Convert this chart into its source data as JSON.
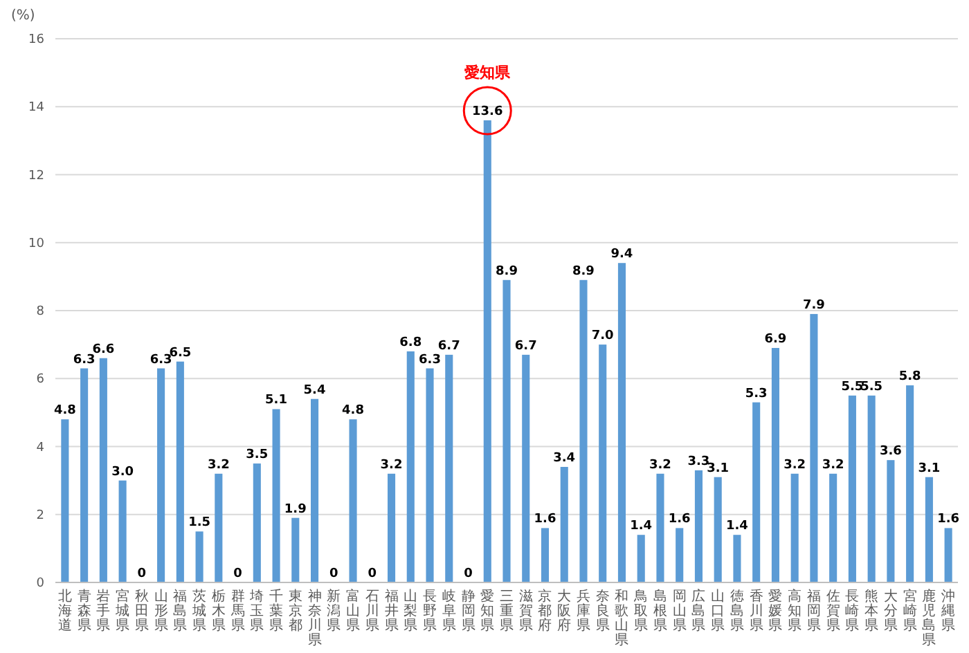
{
  "chart_data": {
    "type": "bar",
    "ylabel": "(%)",
    "categories": [
      "北海道",
      "青森県",
      "岩手県",
      "宮城県",
      "秋田県",
      "山形県",
      "福島県",
      "茨城県",
      "栃木県",
      "群馬県",
      "埼玉県",
      "千葉県",
      "東京都",
      "神奈川県",
      "新潟県",
      "富山県",
      "石川県",
      "福井県",
      "山梨県",
      "長野県",
      "岐阜県",
      "静岡県",
      "愛知県",
      "三重県",
      "滋賀県",
      "京都府",
      "大阪府",
      "兵庫県",
      "奈良県",
      "和歌山県",
      "鳥取県",
      "島根県",
      "岡山県",
      "広島県",
      "山口県",
      "徳島県",
      "香川県",
      "愛媛県",
      "高知県",
      "福岡県",
      "佐賀県",
      "長崎県",
      "熊本県",
      "大分県",
      "宮崎県",
      "鹿児島県",
      "沖縄県"
    ],
    "values": [
      4.8,
      6.3,
      6.6,
      3.0,
      0,
      6.3,
      6.5,
      1.5,
      3.2,
      0,
      3.5,
      5.1,
      1.9,
      5.4,
      0,
      4.8,
      0,
      3.2,
      6.8,
      6.3,
      6.7,
      0,
      13.6,
      8.9,
      6.7,
      1.6,
      3.4,
      8.9,
      7.0,
      9.4,
      1.4,
      3.2,
      1.6,
      3.3,
      3.1,
      1.4,
      5.3,
      6.9,
      3.2,
      7.9,
      3.2,
      5.5,
      5.5,
      3.6,
      5.8,
      3.1,
      1.6
    ],
    "value_labels": [
      "4.8",
      "6.3",
      "6.6",
      "3.0",
      "0",
      "6.3",
      "6.5",
      "1.5",
      "3.2",
      "0",
      "3.5",
      "5.1",
      "1.9",
      "5.4",
      "0",
      "4.8",
      "0",
      "3.2",
      "6.8",
      "6.3",
      "6.7",
      "0",
      "13.6",
      "8.9",
      "6.7",
      "1.6",
      "3.4",
      "8.9",
      "7.0",
      "9.4",
      "1.4",
      "3.2",
      "1.6",
      "3.3",
      "3.1",
      "1.4",
      "5.3",
      "6.9",
      "3.2",
      "7.9",
      "3.2",
      "5.5",
      "5.5",
      "3.6",
      "5.8",
      "3.1",
      "1.6"
    ],
    "color": "#5b9bd5",
    "ylim": [
      0,
      16
    ],
    "yticks": [
      0,
      2,
      4,
      6,
      8,
      10,
      12,
      14,
      16
    ],
    "grid": "y",
    "annotations": [
      {
        "text": "愛知県",
        "x": "愛知県",
        "y": 13.6
      }
    ]
  }
}
